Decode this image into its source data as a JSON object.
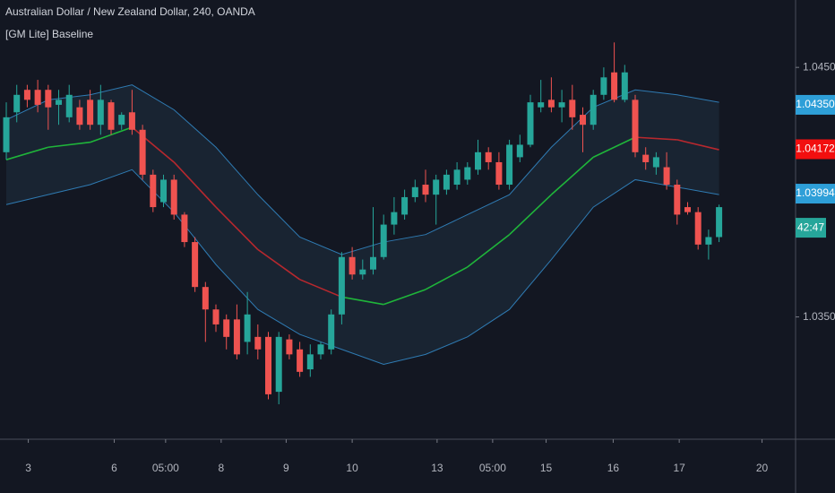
{
  "chart_data": {
    "type": "candlestick",
    "title": "Australian Dollar / New Zealand Dollar, 240, OANDA",
    "indicator": "[GM Lite] Baseline",
    "x": [
      0,
      1,
      2,
      3,
      4,
      5,
      6,
      7,
      8,
      9,
      10,
      11,
      12,
      13,
      14,
      15,
      16,
      17,
      18,
      19,
      20,
      21,
      22,
      23,
      24,
      25,
      26,
      27,
      28,
      29,
      30,
      31,
      32,
      33,
      34,
      35,
      36,
      37,
      38,
      39,
      40,
      41,
      42,
      43,
      44,
      45,
      46,
      47,
      48,
      49,
      50,
      51,
      52,
      53,
      54,
      55,
      56,
      57,
      58,
      59,
      60,
      61,
      62,
      63,
      64,
      65,
      66,
      67,
      68
    ],
    "open": [
      1.0416,
      1.0432,
      1.0441,
      1.0441,
      1.0441,
      1.0435,
      1.043,
      1.0434,
      1.0437,
      1.0427,
      1.0436,
      1.0427,
      1.0432,
      1.0425,
      1.0407,
      1.0396,
      1.0405,
      1.0391,
      1.038,
      1.0362,
      1.0353,
      1.0349,
      1.0349,
      1.034,
      1.0342,
      1.0342,
      1.032,
      1.0341,
      1.0337,
      1.0329,
      1.0335,
      1.0337,
      1.0351,
      1.0374,
      1.0367,
      1.0369,
      1.0374,
      1.0387,
      1.0391,
      1.0398,
      1.0403,
      1.0399,
      1.0401,
      1.0403,
      1.0405,
      1.0409,
      1.0416,
      1.0412,
      1.0403,
      1.0414,
      1.0419,
      1.0434,
      1.0437,
      1.0434,
      1.0437,
      1.0431,
      1.0427,
      1.0439,
      1.0448,
      1.0437,
      1.0437,
      1.0415,
      1.041,
      1.041,
      1.0403,
      1.0394,
      1.0392,
      1.0379,
      1.0382
    ],
    "high": [
      1.0436,
      1.0443,
      1.0443,
      1.0445,
      1.0443,
      1.0441,
      1.0443,
      1.0437,
      1.0441,
      1.0443,
      1.0437,
      1.0432,
      1.0441,
      1.0427,
      1.0409,
      1.0407,
      1.0407,
      1.0392,
      1.0382,
      1.0364,
      1.0355,
      1.0351,
      1.0355,
      1.036,
      1.0347,
      1.0344,
      1.0344,
      1.0343,
      1.034,
      1.0339,
      1.034,
      1.0353,
      1.0376,
      1.0378,
      1.0373,
      1.0394,
      1.0391,
      1.0398,
      1.0401,
      1.0405,
      1.0409,
      1.0407,
      1.0409,
      1.0412,
      1.0412,
      1.0421,
      1.0418,
      1.0416,
      1.0421,
      1.0423,
      1.0439,
      1.0445,
      1.0446,
      1.0441,
      1.0443,
      1.0434,
      1.0441,
      1.045,
      1.046,
      1.0451,
      1.0439,
      1.0418,
      1.0416,
      1.0416,
      1.0405,
      1.0396,
      1.0394,
      1.0385,
      1.0395
    ],
    "low": [
      1.0413,
      1.0428,
      1.0434,
      1.0432,
      1.0425,
      1.0427,
      1.0428,
      1.0425,
      1.0425,
      1.0423,
      1.0423,
      1.0425,
      1.0423,
      1.0405,
      1.0392,
      1.0394,
      1.0389,
      1.0378,
      1.036,
      1.034,
      1.0344,
      1.0337,
      1.0333,
      1.0335,
      1.0333,
      1.0317,
      1.0315,
      1.0333,
      1.0326,
      1.0326,
      1.0333,
      1.0335,
      1.0347,
      1.0365,
      1.0365,
      1.0367,
      1.0373,
      1.0383,
      1.0389,
      1.0396,
      1.0396,
      1.0387,
      1.0399,
      1.0401,
      1.0403,
      1.0407,
      1.0409,
      1.0401,
      1.0401,
      1.0412,
      1.0418,
      1.0432,
      1.0432,
      1.0428,
      1.0425,
      1.0416,
      1.0425,
      1.0437,
      1.0436,
      1.0436,
      1.0414,
      1.0409,
      1.0407,
      1.0401,
      1.0387,
      1.0391,
      1.0377,
      1.0373,
      1.038
    ],
    "close": [
      1.043,
      1.0439,
      1.0437,
      1.0435,
      1.0434,
      1.0437,
      1.0439,
      1.0427,
      1.0427,
      1.0437,
      1.0425,
      1.0431,
      1.0425,
      1.0407,
      1.0394,
      1.0405,
      1.0391,
      1.038,
      1.0362,
      1.0353,
      1.0347,
      1.0342,
      1.0335,
      1.0351,
      1.0337,
      1.0319,
      1.0342,
      1.0335,
      1.0328,
      1.0335,
      1.0339,
      1.0351,
      1.0374,
      1.0367,
      1.0369,
      1.0374,
      1.0387,
      1.0392,
      1.0398,
      1.0402,
      1.0399,
      1.0405,
      1.0407,
      1.0409,
      1.041,
      1.0416,
      1.0412,
      1.0403,
      1.0419,
      1.0419,
      1.0436,
      1.0436,
      1.0434,
      1.0436,
      1.043,
      1.0427,
      1.0439,
      1.0446,
      1.0437,
      1.0448,
      1.0416,
      1.0412,
      1.0414,
      1.0403,
      1.0391,
      1.0392,
      1.0379,
      1.0382,
      1.0394
    ],
    "up_color": "#26a69a",
    "down_color": "#ef5350",
    "baseline": {
      "x": [
        0,
        4,
        8,
        12,
        16,
        20,
        24,
        28,
        32,
        36,
        40,
        44,
        48,
        52,
        56,
        60,
        64,
        68
      ],
      "values": [
        1.0413,
        1.0418,
        1.042,
        1.0426,
        1.0412,
        1.0394,
        1.0377,
        1.0365,
        1.0358,
        1.0355,
        1.0361,
        1.037,
        1.0383,
        1.0399,
        1.0414,
        1.0422,
        1.0421,
        1.0417
      ],
      "up_color": "#1fb53a",
      "down_color": "#b7282e"
    },
    "band": {
      "x": [
        0,
        4,
        8,
        12,
        16,
        20,
        24,
        28,
        32,
        36,
        40,
        44,
        48,
        52,
        56,
        60,
        64,
        68
      ],
      "upper": [
        1.0429,
        1.0437,
        1.0439,
        1.0443,
        1.0433,
        1.0418,
        1.0399,
        1.0382,
        1.0375,
        1.038,
        1.0383,
        1.0391,
        1.0399,
        1.0418,
        1.0434,
        1.0441,
        1.0439,
        1.0436
      ],
      "lower": [
        1.0395,
        1.0399,
        1.0403,
        1.0409,
        1.0392,
        1.0371,
        1.0353,
        1.0343,
        1.0337,
        1.0331,
        1.0335,
        1.0342,
        1.0353,
        1.0373,
        1.0394,
        1.0405,
        1.0402,
        1.0399
      ],
      "color": "#2f7bb3",
      "fill": "#1b2634"
    },
    "xlim": [
      -0.6,
      75.3
    ],
    "xticks": [
      {
        "value": 2.1,
        "label": "3"
      },
      {
        "value": 10.3,
        "label": "6"
      },
      {
        "value": 15.2,
        "label": "05:00"
      },
      {
        "value": 20.5,
        "label": "8"
      },
      {
        "value": 26.7,
        "label": "9"
      },
      {
        "value": 33,
        "label": "10"
      },
      {
        "value": 41.1,
        "label": "13"
      },
      {
        "value": 46.4,
        "label": "05:00"
      },
      {
        "value": 51.5,
        "label": "15"
      },
      {
        "value": 57.9,
        "label": "16"
      },
      {
        "value": 64.2,
        "label": "17"
      },
      {
        "value": 72.1,
        "label": "20"
      }
    ],
    "ylim": [
      1.0301,
      1.0477
    ],
    "yticks": [
      {
        "value": 1.045,
        "label": "1.04500"
      },
      {
        "value": 1.035,
        "label": "1.03500"
      }
    ],
    "price_labels": [
      {
        "value": 1.0435,
        "label": "1.04350",
        "color": "#2e9fd8"
      },
      {
        "value": 1.04172,
        "label": "1.04172",
        "color": "#f20f0f"
      },
      {
        "value": 1.03994,
        "label": "1.03994",
        "color": "#2e9fd8"
      }
    ],
    "countdown": {
      "label": "42:47",
      "color": "#26a69a"
    }
  }
}
